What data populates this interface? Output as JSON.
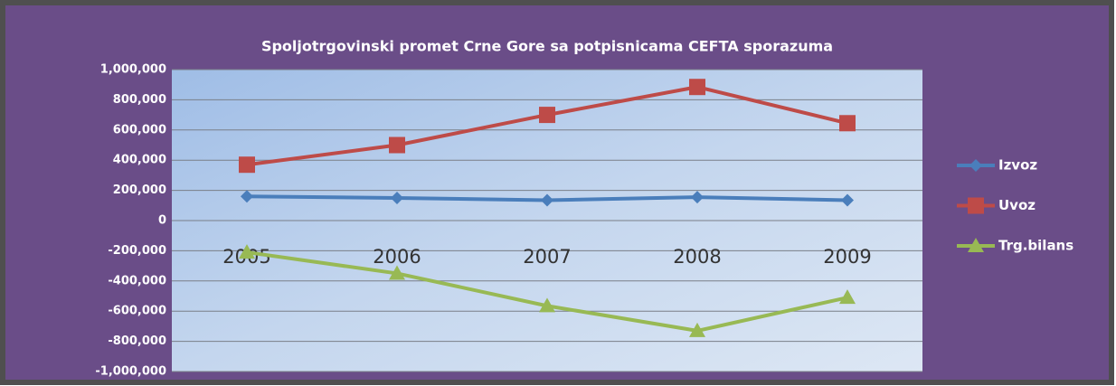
{
  "chart_data": {
    "type": "line",
    "title": "Spoljotrgovinski promet Crne Gore sa potpisnicama  CEFTA sporazuma",
    "categories": [
      "2005",
      "2006",
      "2007",
      "2008",
      "2009"
    ],
    "series": [
      {
        "name": "Izvoz",
        "color": "#4a7ebb",
        "marker": "diamond",
        "values": [
          160000,
          150000,
          135000,
          155000,
          135000
        ]
      },
      {
        "name": "Uvoz",
        "color": "#be4b48",
        "marker": "square",
        "values": [
          370000,
          500000,
          700000,
          885000,
          645000
        ]
      },
      {
        "name": "Trg.bilans",
        "color": "#98b954",
        "marker": "triangle",
        "values": [
          -210000,
          -350000,
          -565000,
          -730000,
          -510000
        ]
      }
    ],
    "ylim": [
      -1000000,
      1000000
    ],
    "yticks": [
      {
        "value": -1000000,
        "label": "-1,000,000"
      },
      {
        "value": -800000,
        "label": "-800,000"
      },
      {
        "value": -600000,
        "label": "-600,000"
      },
      {
        "value": -400000,
        "label": "-400,000"
      },
      {
        "value": -200000,
        "label": "-200,000"
      },
      0,
      {
        "value": 200000,
        "label": "200,000"
      },
      {
        "value": 400000,
        "label": "400,000"
      },
      {
        "value": 600000,
        "label": "600,000"
      },
      {
        "value": 800000,
        "label": "800,000"
      },
      {
        "value": 1000000,
        "label": "1,000,000"
      }
    ],
    "grid": true,
    "legend": "right"
  }
}
